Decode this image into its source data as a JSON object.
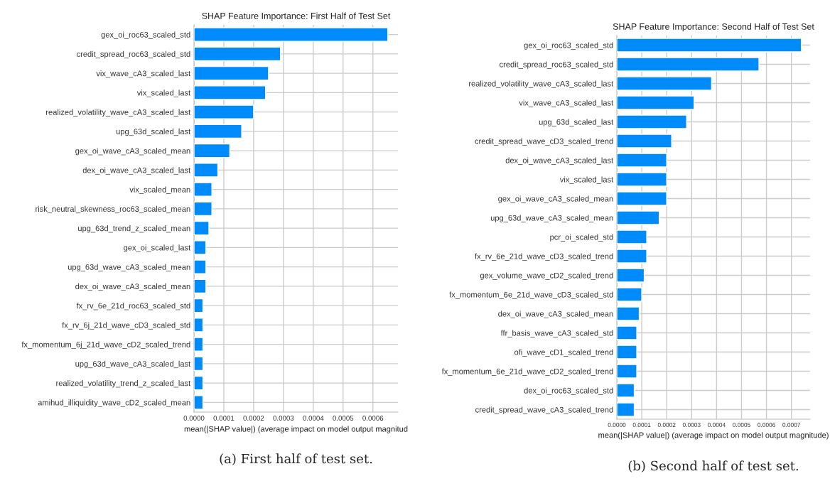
{
  "chart_data": [
    {
      "type": "bar",
      "orientation": "horizontal",
      "title": "SHAP Feature Importance: First Half of Test Set",
      "xlabel": "mean(|SHAP value|) (average impact on model output magnitud",
      "color": "#008bfb",
      "grid": true,
      "categories": [
        "gex_oi_roc63_scaled_std",
        "credit_spread_roc63_scaled_std",
        "vix_wave_cA3_scaled_last",
        "vix_scaled_last",
        "realized_volatility_wave_cA3_scaled_last",
        "upg_63d_scaled_last",
        "gex_oi_wave_cA3_scaled_mean",
        "dex_oi_wave_cA3_scaled_last",
        "vix_scaled_mean",
        "risk_neutral_skewness_roc63_scaled_mean",
        "upg_63d_trend_z_scaled_mean",
        "gex_oi_scaled_last",
        "upg_63d_wave_cA3_scaled_mean",
        "dex_oi_wave_cA3_scaled_mean",
        "fx_rv_6e_21d_roc63_scaled_std",
        "fx_rv_6j_21d_wave_cD3_scaled_std",
        "fx_momentum_6j_21d_wave_cD2_scaled_trend",
        "upg_63d_wave_cA3_scaled_last",
        "realized_volatility_trend_z_scaled_last",
        "amihud_illiquidity_wave_cD2_scaled_mean"
      ],
      "values": [
        0.00065,
        0.00029,
        0.00025,
        0.00024,
        0.0002,
        0.00016,
        0.00012,
        8e-05,
        6e-05,
        6e-05,
        5e-05,
        4e-05,
        4e-05,
        4e-05,
        3e-05,
        3e-05,
        3e-05,
        3e-05,
        3e-05,
        3e-05
      ],
      "xlim": [
        0,
        0.000684
      ],
      "xticks": [
        {
          "value": 0,
          "label": "0.0000"
        },
        0.0001,
        0.0002,
        0.0003,
        0.0004,
        0.0005,
        0.0006
      ],
      "annotations": [
        "(a) First half of test set."
      ]
    },
    {
      "type": "bar",
      "orientation": "horizontal",
      "title": "SHAP Feature Importance: Second Half of Test Set",
      "xlabel": "mean(|SHAP value|) (average impact on model output magnitude)",
      "color": "#008bfb",
      "grid": true,
      "categories": [
        "gex_oi_roc63_scaled_std",
        "credit_spread_roc63_scaled_std",
        "realized_volatility_wave_cA3_scaled_last",
        "vix_wave_cA3_scaled_last",
        "upg_63d_scaled_last",
        "credit_spread_wave_cD3_scaled_trend",
        "dex_oi_wave_cA3_scaled_last",
        "vix_scaled_last",
        "gex_oi_wave_cA3_scaled_mean",
        "upg_63d_wave_cA3_scaled_mean",
        "pcr_oi_scaled_std",
        "fx_rv_6e_21d_wave_cD3_scaled_trend",
        "gex_volume_wave_cD2_scaled_trend",
        "fx_momentum_6e_21d_wave_cD3_scaled_std",
        "dex_oi_wave_cA3_scaled_mean",
        "ffr_basis_wave_cA3_scaled_std",
        "ofi_wave_cD1_scaled_trend",
        "fx_momentum_6e_21d_wave_cD2_scaled_trend",
        "dex_oi_roc63_scaled_std",
        "credit_spread_wave_cA3_scaled_trend"
      ],
      "values": [
        0.00074,
        0.00057,
        0.00038,
        0.00031,
        0.00028,
        0.00022,
        0.0002,
        0.0002,
        0.0002,
        0.00017,
        0.00012,
        0.00012,
        0.00011,
        0.0001,
        9e-05,
        8e-05,
        8e-05,
        8e-05,
        7e-05,
        7e-05
      ],
      "xlim": [
        0,
        0.000775
      ],
      "xticks": [
        {
          "value": 0,
          "label": "0.0000"
        },
        0.0001,
        0.0002,
        0.0003,
        0.0004,
        0.0005,
        0.0006,
        0.0007
      ],
      "annotations": [
        "(b) Second half of test set."
      ]
    }
  ]
}
